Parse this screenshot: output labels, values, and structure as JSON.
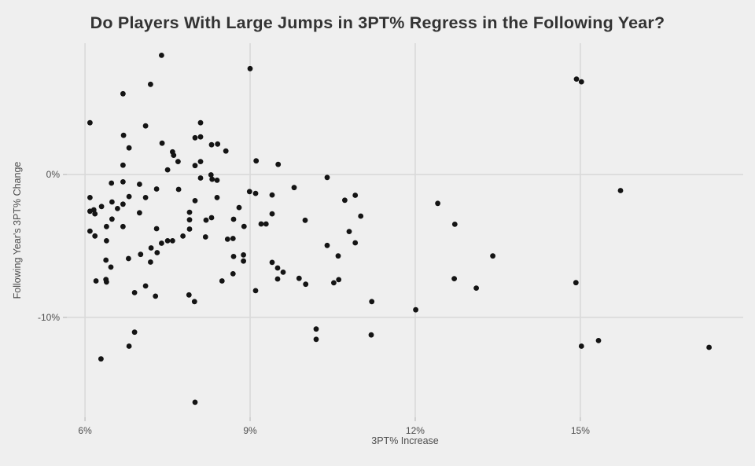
{
  "page": {
    "background": "#efefef"
  },
  "title": {
    "text": "Do Players With Large Jumps in 3PT% Regress in the Following Year?",
    "color": "#333333"
  },
  "chart_data": {
    "type": "scatter",
    "title": "Do Players With Large Jumps in 3PT% Regress in the Following Year?",
    "xlabel": "3PT% Increase",
    "ylabel": "Following Year's 3PT% Change",
    "xlim": [
      5.67,
      17.96
    ],
    "ylim": [
      -17.0,
      9.2
    ],
    "grid": true,
    "legend": "none",
    "point_color": "#141414",
    "grid_color": "#d9d9d9",
    "tick_mark_color": "#c3c3c3",
    "tick_label_color": "#4d4d4d",
    "x_ticks": [
      {
        "value": 6,
        "label": "6%"
      },
      {
        "value": 9,
        "label": "9%"
      },
      {
        "value": 12,
        "label": "12%"
      },
      {
        "value": 15,
        "label": "15%"
      }
    ],
    "y_ticks": [
      {
        "value": 0,
        "label": "0%"
      },
      {
        "value": -10,
        "label": "-10%"
      }
    ],
    "points": [
      [
        7.39,
        8.35
      ],
      [
        9.0,
        7.42
      ],
      [
        7.19,
        6.32
      ],
      [
        6.69,
        5.66
      ],
      [
        6.09,
        3.63
      ],
      [
        7.1,
        3.41
      ],
      [
        6.7,
        2.75
      ],
      [
        8.1,
        3.63
      ],
      [
        8.0,
        2.58
      ],
      [
        8.1,
        2.64
      ],
      [
        7.4,
        2.2
      ],
      [
        6.8,
        1.87
      ],
      [
        8.3,
        2.09
      ],
      [
        8.41,
        2.14
      ],
      [
        8.56,
        1.65
      ],
      [
        7.59,
        1.59
      ],
      [
        7.61,
        1.35
      ],
      [
        7.69,
        0.91
      ],
      [
        6.69,
        0.66
      ],
      [
        8.0,
        0.63
      ],
      [
        8.1,
        0.91
      ],
      [
        9.11,
        0.96
      ],
      [
        9.51,
        0.71
      ],
      [
        7.5,
        0.33
      ],
      [
        8.1,
        -0.24
      ],
      [
        8.29,
        -0.02
      ],
      [
        8.31,
        -0.33
      ],
      [
        8.4,
        -0.4
      ],
      [
        6.48,
        -0.6
      ],
      [
        6.69,
        -0.51
      ],
      [
        6.99,
        -0.68
      ],
      [
        7.3,
        -1.01
      ],
      [
        7.7,
        -1.04
      ],
      [
        6.09,
        -1.61
      ],
      [
        6.8,
        -1.54
      ],
      [
        7.1,
        -1.61
      ],
      [
        8.0,
        -1.83
      ],
      [
        8.4,
        -1.61
      ],
      [
        8.99,
        -1.19
      ],
      [
        9.1,
        -1.32
      ],
      [
        9.4,
        -1.43
      ],
      [
        9.8,
        -0.91
      ],
      [
        6.3,
        -2.24
      ],
      [
        6.49,
        -1.92
      ],
      [
        6.69,
        -2.07
      ],
      [
        6.59,
        -2.38
      ],
      [
        6.09,
        -2.57
      ],
      [
        6.16,
        -2.47
      ],
      [
        6.18,
        -2.75
      ],
      [
        6.99,
        -2.68
      ],
      [
        8.8,
        -2.31
      ],
      [
        9.4,
        -2.75
      ],
      [
        6.49,
        -3.12
      ],
      [
        7.9,
        -2.64
      ],
      [
        7.9,
        -3.17
      ],
      [
        8.2,
        -3.19
      ],
      [
        8.3,
        -3.02
      ],
      [
        8.7,
        -3.13
      ],
      [
        9.2,
        -3.46
      ],
      [
        9.29,
        -3.46
      ],
      [
        8.89,
        -3.63
      ],
      [
        6.39,
        -3.64
      ],
      [
        6.69,
        -3.64
      ],
      [
        6.09,
        -3.96
      ],
      [
        6.18,
        -4.3
      ],
      [
        7.3,
        -3.79
      ],
      [
        7.9,
        -3.82
      ],
      [
        7.78,
        -4.31
      ],
      [
        8.19,
        -4.37
      ],
      [
        8.59,
        -4.53
      ],
      [
        8.69,
        -4.48
      ],
      [
        6.39,
        -4.64
      ],
      [
        7.39,
        -4.81
      ],
      [
        7.5,
        -4.64
      ],
      [
        7.59,
        -4.64
      ],
      [
        7.2,
        -5.14
      ],
      [
        7.31,
        -5.47
      ],
      [
        7.01,
        -5.59
      ],
      [
        6.79,
        -5.88
      ],
      [
        6.38,
        -5.99
      ],
      [
        6.47,
        -6.48
      ],
      [
        7.19,
        -6.13
      ],
      [
        8.7,
        -5.74
      ],
      [
        8.88,
        -5.63
      ],
      [
        8.88,
        -6.06
      ],
      [
        9.4,
        -6.15
      ],
      [
        9.5,
        -6.54
      ],
      [
        9.6,
        -6.84
      ],
      [
        9.5,
        -7.31
      ],
      [
        8.69,
        -6.95
      ],
      [
        8.49,
        -7.45
      ],
      [
        6.2,
        -7.45
      ],
      [
        6.38,
        -7.35
      ],
      [
        6.39,
        -7.52
      ],
      [
        6.9,
        -8.27
      ],
      [
        7.1,
        -7.8
      ],
      [
        7.89,
        -8.43
      ],
      [
        7.28,
        -8.52
      ],
      [
        9.1,
        -8.13
      ],
      [
        7.99,
        -8.9
      ],
      [
        6.9,
        -11.04
      ],
      [
        6.8,
        -12.02
      ],
      [
        6.29,
        -12.91
      ],
      [
        8.0,
        -15.95
      ],
      [
        10.4,
        -0.2
      ],
      [
        10.91,
        -1.45
      ],
      [
        10.72,
        -1.8
      ],
      [
        11.01,
        -2.91
      ],
      [
        10.0,
        -3.2
      ],
      [
        10.8,
        -3.99
      ],
      [
        10.4,
        -4.96
      ],
      [
        10.91,
        -4.78
      ],
      [
        10.6,
        -5.7
      ],
      [
        9.89,
        -7.27
      ],
      [
        10.01,
        -7.68
      ],
      [
        10.52,
        -7.58
      ],
      [
        10.61,
        -7.36
      ],
      [
        11.21,
        -8.9
      ],
      [
        12.41,
        -2.02
      ],
      [
        12.72,
        -3.48
      ],
      [
        13.41,
        -5.7
      ],
      [
        12.71,
        -7.29
      ],
      [
        13.11,
        -7.95
      ],
      [
        12.01,
        -9.47
      ],
      [
        10.2,
        -10.82
      ],
      [
        11.2,
        -11.23
      ],
      [
        10.2,
        -11.54
      ],
      [
        14.93,
        6.69
      ],
      [
        15.02,
        6.5
      ],
      [
        15.73,
        -1.12
      ],
      [
        14.92,
        -7.57
      ],
      [
        15.02,
        -12.02
      ],
      [
        15.33,
        -11.63
      ],
      [
        17.34,
        -12.1
      ]
    ]
  }
}
